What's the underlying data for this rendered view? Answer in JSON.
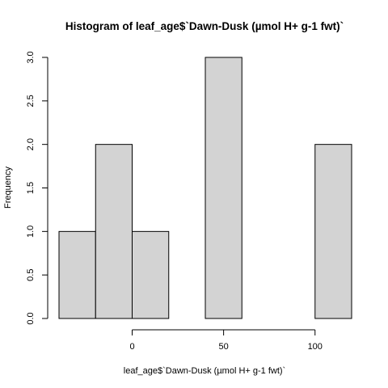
{
  "chart_data": {
    "type": "bar",
    "title": "Histogram of leaf_age$`Dawn-Dusk (µmol H+ g-1 fwt)`",
    "xlabel": "leaf_age$`Dawn-Dusk (µmol H+ g-1 fwt)`",
    "ylabel": "Frequency",
    "bins": [
      {
        "from": -40,
        "to": -20,
        "count": 1
      },
      {
        "from": -20,
        "to": 0,
        "count": 2
      },
      {
        "from": 0,
        "to": 20,
        "count": 1
      },
      {
        "from": 20,
        "to": 40,
        "count": 0
      },
      {
        "from": 40,
        "to": 60,
        "count": 3
      },
      {
        "from": 60,
        "to": 80,
        "count": 0
      },
      {
        "from": 80,
        "to": 100,
        "count": 0
      },
      {
        "from": 100,
        "to": 120,
        "count": 2
      }
    ],
    "xlim": [
      -40,
      120
    ],
    "ylim": [
      0,
      3
    ],
    "x_ticks": [
      0,
      50,
      100
    ],
    "x_tick_labels": [
      "0",
      "50",
      "100"
    ],
    "y_ticks": [
      0,
      0.5,
      1,
      1.5,
      2,
      2.5,
      3
    ],
    "y_tick_labels": [
      "0.0",
      "0.5",
      "1.0",
      "1.5",
      "2.0",
      "2.5",
      "3.0"
    ],
    "colors": {
      "bar_fill": "#d3d3d3",
      "bar_stroke": "#000000"
    },
    "grid": false,
    "legend": "none"
  }
}
